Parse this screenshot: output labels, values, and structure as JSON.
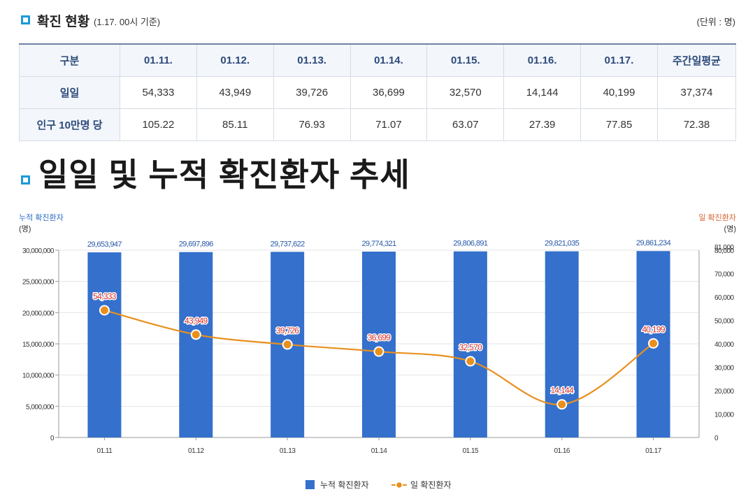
{
  "header": {
    "title": "확진 현황",
    "time_note": "(1.17. 00시 기준)",
    "unit": "(단위 : 명)"
  },
  "table": {
    "columns": [
      "구분",
      "01.11.",
      "01.12.",
      "01.13.",
      "01.14.",
      "01.15.",
      "01.16.",
      "01.17.",
      "주간일평균"
    ],
    "rows": [
      {
        "label": "일일",
        "values": [
          "54,333",
          "43,949",
          "39,726",
          "36,699",
          "32,570",
          "14,144",
          "40,199",
          "37,374"
        ]
      },
      {
        "label": "인구 10만명 당",
        "values": [
          "105.22",
          "85.11",
          "76.93",
          "71.07",
          "63.07",
          "27.39",
          "77.85",
          "72.38"
        ]
      }
    ]
  },
  "section2": {
    "title": "일일 및 누적 확진환자 추세"
  },
  "colors": {
    "bar": "#3470cc",
    "line": "#e8901e",
    "accent": "#1f9ad6"
  },
  "chart_data": {
    "type": "bar",
    "categories": [
      "01.11",
      "01.12",
      "01.13",
      "01.14",
      "01.15",
      "01.16",
      "01.17"
    ],
    "series": [
      {
        "name": "누적 확진환자",
        "type": "bar",
        "axis": "left",
        "values": [
          29653947,
          29697896,
          29737622,
          29774321,
          29806891,
          29821035,
          29861234
        ],
        "labels": [
          "29,653,947",
          "29,697,896",
          "29,737,622",
          "29,774,321",
          "29,806,891",
          "29,821,035",
          "29,861,234"
        ]
      },
      {
        "name": "일 확진환자",
        "type": "line",
        "axis": "right",
        "values": [
          54333,
          43949,
          39726,
          36699,
          32570,
          14144,
          40199
        ],
        "labels": [
          "54,333",
          "43,949",
          "39,726",
          "36,699",
          "32,570",
          "14,144",
          "40,199"
        ]
      }
    ],
    "y_left": {
      "title": "누적 확진환자",
      "unit": "(명)",
      "min": 0,
      "max": 30000000,
      "ticks": [
        0,
        5000000,
        10000000,
        15000000,
        20000000,
        25000000,
        30000000
      ],
      "tick_labels": [
        "0",
        "5,000,000",
        "10,000,000",
        "15,000,000",
        "20,000,000",
        "25,000,000",
        "30,000,000"
      ]
    },
    "y_right": {
      "title": "일 확진환자",
      "unit": "(명)",
      "min": 0,
      "max": 80000,
      "ticks": [
        0,
        10000,
        20000,
        30000,
        40000,
        50000,
        60000,
        70000,
        80000
      ],
      "tick_labels": [
        "0",
        "10,000",
        "20,000",
        "30,000",
        "40,000",
        "50,000",
        "60,000",
        "70,000",
        "80,000"
      ],
      "extra_top_label": "81,000"
    },
    "legend_position": "bottom-center",
    "grid": true
  }
}
